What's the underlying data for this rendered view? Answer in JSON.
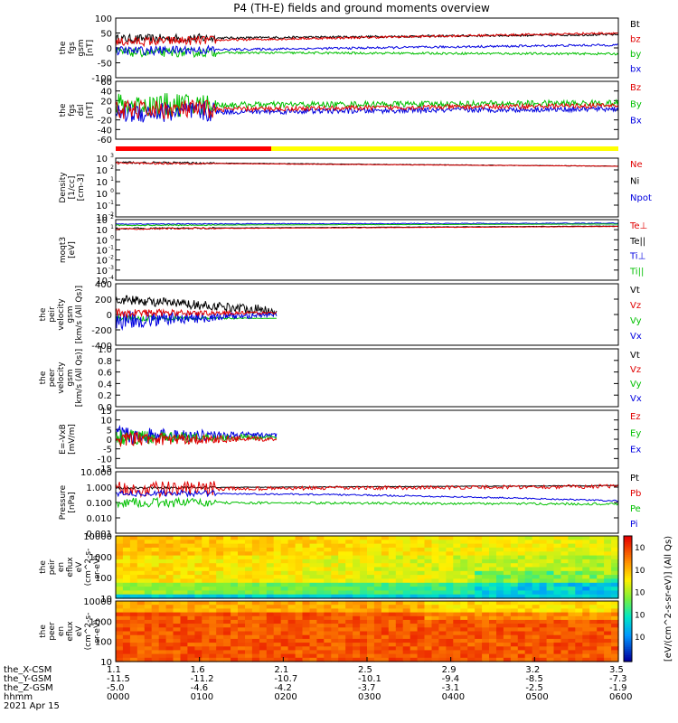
{
  "chart_data": {
    "type": "line",
    "title": "P4 (TH-E) fields and ground moments overview",
    "time_ticks": [
      "0000",
      "0100",
      "0200",
      "0300",
      "0400",
      "0500",
      "0600"
    ],
    "orbit_rows": [
      {
        "label": "the_X-CSM",
        "values": [
          "1.1",
          "1.6",
          "2.1",
          "2.5",
          "2.9",
          "3.2",
          "3.5"
        ]
      },
      {
        "label": "the_Y-GSM",
        "values": [
          "-11.5",
          "-11.2",
          "-10.7",
          "-10.1",
          "-9.4",
          "-8.5",
          "-7.3"
        ]
      },
      {
        "label": "the_Z-GSM",
        "values": [
          "-5.0",
          "-4.6",
          "-4.2",
          "-3.7",
          "-3.1",
          "-2.5",
          "-1.9"
        ]
      },
      {
        "label": "hhmm",
        "values": []
      },
      {
        "label": "2021 Apr 15",
        "values": []
      }
    ],
    "panels": [
      {
        "ylabel": [
          "the",
          "fgs",
          "gsm",
          "[nT]"
        ],
        "ticks": [
          "100",
          "50",
          "0",
          "-50",
          "-100"
        ],
        "legend": [
          {
            "name": "Bt",
            "color": "#000000"
          },
          {
            "name": "bz",
            "color": "#e00000"
          },
          {
            "name": "by",
            "color": "#00c000"
          },
          {
            "name": "bx",
            "color": "#0000e0"
          }
        ]
      },
      {
        "ylabel": [
          "the",
          "fgs",
          "dsl",
          "[nT]"
        ],
        "ticks": [
          "60",
          "40",
          "20",
          "0",
          "-20",
          "-40",
          "-60"
        ],
        "legend": [
          {
            "name": "Bz",
            "color": "#e00000"
          },
          {
            "name": "By",
            "color": "#00c000"
          },
          {
            "name": "Bx",
            "color": "#0000e0"
          }
        ]
      },
      {
        "ylabel": [
          "Density",
          "[1/cc]",
          "[cm-3]"
        ],
        "ticks": [
          "10",
          "10",
          "10",
          "10",
          "10",
          "10"
        ],
        "legend": [
          {
            "name": "Ne",
            "color": "#e00000"
          },
          {
            "name": "Ni",
            "color": "#000000"
          },
          {
            "name": "Npot",
            "color": "#0000e0"
          }
        ]
      },
      {
        "ylabel": [
          "moqt3",
          "[eV]"
        ],
        "ticks": [
          "10",
          "10",
          "10",
          "10",
          "10",
          "10",
          "10"
        ],
        "legend": [
          {
            "name": "Te⊥",
            "color": "#e00000"
          },
          {
            "name": "Te||",
            "color": "#000000"
          },
          {
            "name": "Ti⊥",
            "color": "#0000e0"
          },
          {
            "name": "Ti||",
            "color": "#00c000"
          }
        ]
      },
      {
        "ylabel": [
          "the",
          "peir",
          "velocity",
          "gsm",
          "[km/s (All Qs)]"
        ],
        "ticks": [
          "400",
          "200",
          "0",
          "-200",
          "-400"
        ],
        "legend": [
          {
            "name": "Vt",
            "color": "#000000"
          },
          {
            "name": "Vz",
            "color": "#e00000"
          },
          {
            "name": "Vy",
            "color": "#00c000"
          },
          {
            "name": "Vx",
            "color": "#0000e0"
          }
        ]
      },
      {
        "ylabel": [
          "the",
          "peer",
          "velocity",
          "gsm",
          "[km/s (All Qs)]"
        ],
        "ticks": [
          "1.0",
          "0.8",
          "0.6",
          "0.4",
          "0.2",
          "0.0"
        ],
        "legend": [
          {
            "name": "Vt",
            "color": "#000000"
          },
          {
            "name": "Vz",
            "color": "#e00000"
          },
          {
            "name": "Vy",
            "color": "#00c000"
          },
          {
            "name": "Vx",
            "color": "#0000e0"
          }
        ]
      },
      {
        "ylabel": [
          "E=-VxB",
          "[mV/m]"
        ],
        "ticks": [
          "15",
          "10",
          "5",
          "0",
          "-5",
          "-10",
          "-15"
        ],
        "legend": [
          {
            "name": "Ez",
            "color": "#e00000"
          },
          {
            "name": "Ey",
            "color": "#00c000"
          },
          {
            "name": "Ex",
            "color": "#0000e0"
          }
        ]
      },
      {
        "ylabel": [
          "Pressure",
          "[nPa]"
        ],
        "ticks": [
          "10.000",
          "1.000",
          "0.100",
          "0.010",
          "0.001"
        ],
        "legend": [
          {
            "name": "Pt",
            "color": "#000000"
          },
          {
            "name": "Pb",
            "color": "#e00000"
          },
          {
            "name": "Pe",
            "color": "#00c000"
          },
          {
            "name": "Pi",
            "color": "#0000e0"
          }
        ]
      },
      {
        "ylabel": [
          "the",
          "peir",
          "en",
          "eflux",
          "eV",
          "(cm^2-s-",
          "sr-eV)"
        ],
        "ticks": [
          "10000",
          "1000",
          "100",
          "10"
        ],
        "legend": []
      },
      {
        "ylabel": [
          "the",
          "peer",
          "en",
          "eflux",
          "eV",
          "(cm^2-s-",
          "sr-eV)"
        ],
        "ticks": [
          "10000",
          "1000",
          "100",
          "10"
        ],
        "legend": []
      }
    ],
    "colorbar": {
      "label": "[eV/(cm^2-s-sr-eV)] (All Qs)",
      "ticks": [
        "10",
        "10",
        "10",
        "10",
        "10"
      ]
    }
  }
}
